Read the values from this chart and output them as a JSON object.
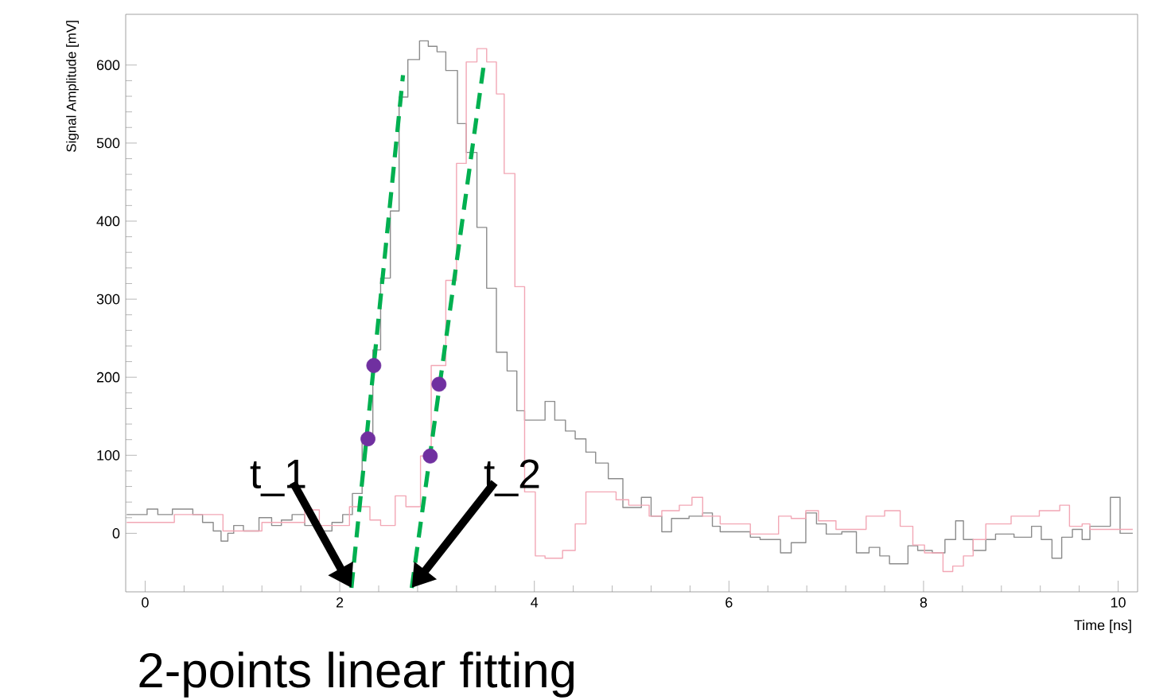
{
  "chart_data": {
    "type": "step",
    "xlabel": "Time [ns]",
    "ylabel": "Signal Amplitude [mV]",
    "xlim": [
      -0.2,
      10.2
    ],
    "ylim": [
      -75,
      665
    ],
    "xticks": [
      0,
      2,
      4,
      6,
      8,
      10
    ],
    "yticks": [
      0,
      100,
      200,
      300,
      400,
      500,
      600
    ],
    "grid": false,
    "series": [
      {
        "color": "#8c8c8c",
        "x": [
          -0.19,
          0.02,
          0.13,
          0.28,
          0.49,
          0.59,
          0.7,
          0.78,
          0.85,
          0.91,
          1.01,
          1.17,
          1.3,
          1.4,
          1.51,
          1.64,
          1.79,
          1.92,
          2.03,
          2.13,
          2.23,
          2.34,
          2.42,
          2.52,
          2.61,
          2.7,
          2.82,
          2.91,
          3.0,
          3.09,
          3.21,
          3.3,
          3.41,
          3.51,
          3.61,
          3.72,
          3.82,
          3.9,
          4.11,
          4.21,
          4.32,
          4.42,
          4.53,
          4.63,
          4.76,
          4.91,
          5.1,
          5.2,
          5.31,
          5.41,
          5.59,
          5.73,
          5.83,
          5.91,
          6.22,
          6.32,
          6.53,
          6.64,
          6.79,
          6.9,
          7.0,
          7.16,
          7.31,
          7.44,
          7.55,
          7.65,
          7.84,
          7.94,
          8.09,
          8.22,
          8.33,
          8.41,
          8.51,
          8.64,
          8.74,
          8.93,
          9.11,
          9.21,
          9.32,
          9.42,
          9.53,
          9.63,
          9.71,
          9.92,
          10.02,
          10.15
        ],
        "values": [
          24,
          31,
          24,
          31,
          24,
          14,
          3,
          -10,
          0,
          10,
          3,
          20,
          10,
          17,
          24,
          10,
          3,
          14,
          24,
          51,
          119,
          235,
          327,
          413,
          559,
          607,
          631,
          624,
          617,
          593,
          525,
          488,
          392,
          314,
          232,
          208,
          157,
          145,
          169,
          145,
          131,
          121,
          104,
          90,
          70,
          33,
          46,
          22,
          2,
          19,
          22,
          26,
          9,
          2,
          -5,
          -8,
          -25,
          -12,
          26,
          12,
          -1,
          2,
          -25,
          -18,
          -29,
          -39,
          -16,
          -22,
          -25,
          -8,
          16,
          -8,
          -22,
          -8,
          -1,
          -5,
          9,
          -8,
          -32,
          -5,
          5,
          -8,
          9,
          46,
          0,
          0
        ]
      },
      {
        "color": "#f2a7b5",
        "x": [
          -0.19,
          0.3,
          0.8,
          1.2,
          1.64,
          1.79,
          2.1,
          2.31,
          2.42,
          2.57,
          2.68,
          2.83,
          2.94,
          3.09,
          3.2,
          3.3,
          3.41,
          3.51,
          3.61,
          3.69,
          3.8,
          3.9,
          4.01,
          4.11,
          4.29,
          4.42,
          4.53,
          4.84,
          4.97,
          5.18,
          5.31,
          5.49,
          5.62,
          5.73,
          5.91,
          6.22,
          6.51,
          6.64,
          6.79,
          6.92,
          7.1,
          7.41,
          7.6,
          7.76,
          7.89,
          8.01,
          8.2,
          8.3,
          8.41,
          8.51,
          8.64,
          8.9,
          9.19,
          9.4,
          9.5,
          9.63,
          9.71,
          10.15
        ],
        "values": [
          14,
          24,
          3,
          14,
          30,
          10,
          34,
          17,
          10,
          48,
          34,
          99,
          215,
          324,
          474,
          604,
          621,
          604,
          563,
          461,
          316,
          53,
          -29,
          -32,
          -22,
          12,
          53,
          43,
          36,
          22,
          29,
          36,
          46,
          22,
          12,
          -1,
          22,
          19,
          29,
          16,
          5,
          22,
          29,
          9,
          -15,
          -25,
          -49,
          -42,
          -29,
          -8,
          12,
          22,
          29,
          36,
          9,
          12,
          5,
          5
        ]
      },
      {
        "type": "line",
        "color": "#00b050",
        "line_style": "dashed",
        "x": [
          2.12,
          2.65
        ],
        "values": [
          -70,
          587
        ]
      },
      {
        "type": "line",
        "color": "#00b050",
        "line_style": "dashed",
        "x": [
          2.74,
          3.48
        ],
        "values": [
          -70,
          600
        ]
      },
      {
        "type": "scatter",
        "color": "#7030a0",
        "marker": "circle",
        "x": [
          2.29,
          2.35,
          2.93,
          3.02
        ],
        "values": [
          121,
          215,
          99,
          191
        ]
      }
    ],
    "annotations": [
      {
        "text": "t_1",
        "x": 2.12,
        "y": -70
      },
      {
        "text": "t_2",
        "x": 2.74,
        "y": -70
      },
      "2-points linear fitting"
    ]
  }
}
